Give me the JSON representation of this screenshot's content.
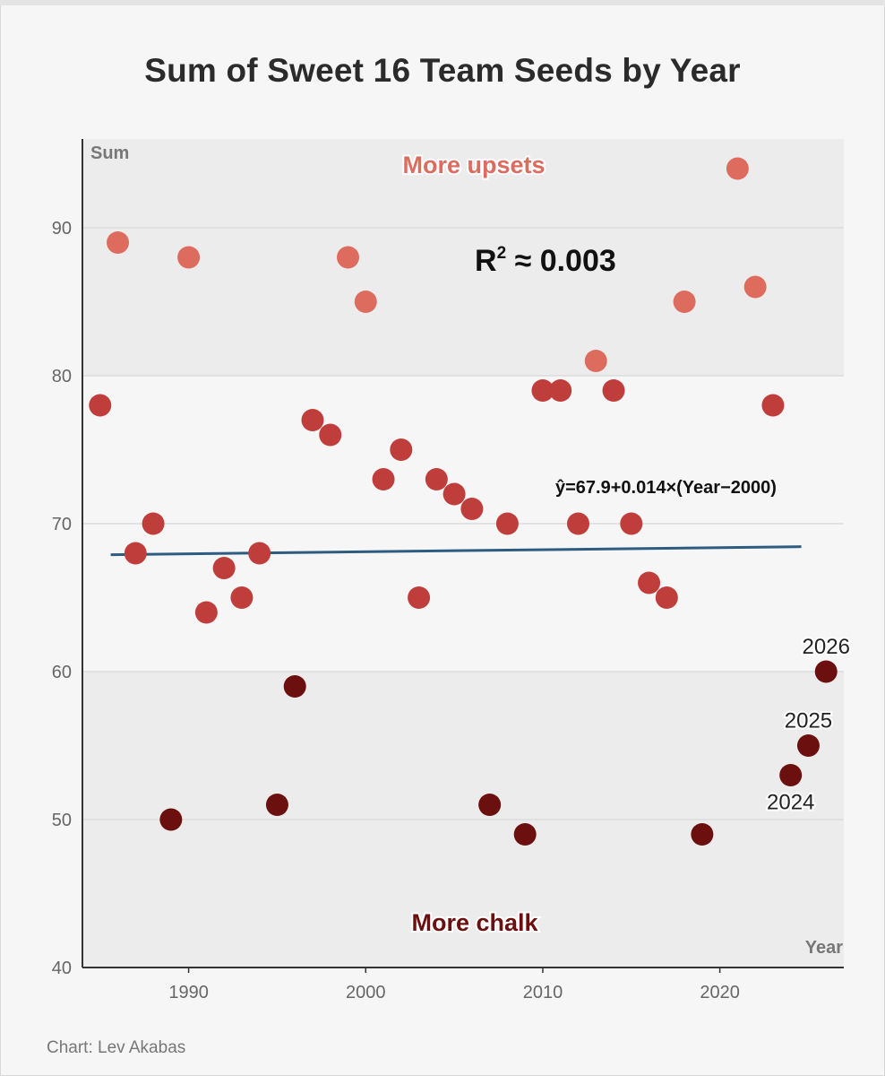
{
  "title": "Sum of Sweet 16 Team Seeds by Year",
  "source": "Chart: Lev Akabas",
  "colors": {
    "upset": "#de6c5e",
    "middle": "#bf3e3c",
    "chalk": "#6b0f0f",
    "trend": "#2e5c80",
    "band": "#ececec",
    "axis": "#333333"
  },
  "chart_data": {
    "type": "scatter",
    "title": "Sum of Sweet 16 Team Seeds by Year",
    "xlabel": "Year",
    "ylabel": "Sum",
    "xlim": [
      1984,
      2027
    ],
    "ylim": [
      40,
      96
    ],
    "xticks": [
      1990,
      2000,
      2010,
      2020
    ],
    "yticks": [
      40,
      50,
      60,
      70,
      80,
      90
    ],
    "bands": [
      [
        40,
        60
      ],
      [
        80,
        96
      ]
    ],
    "annotations": {
      "top": "More upsets",
      "bottom": "More chalk",
      "r2_prefix": "R",
      "r2_exp": "2",
      "r2_value": " ≈ 0.003",
      "equation": "ŷ=67.9+0.014×(Year−2000)"
    },
    "trendline": {
      "intercept": 67.9,
      "slope": 0.014,
      "x_start": 1985.6,
      "x_end": 2024.6
    },
    "points": [
      {
        "year": 1985,
        "sum": 78,
        "group": "middle"
      },
      {
        "year": 1986,
        "sum": 89,
        "group": "upset"
      },
      {
        "year": 1987,
        "sum": 68,
        "group": "middle"
      },
      {
        "year": 1988,
        "sum": 70,
        "group": "middle"
      },
      {
        "year": 1989,
        "sum": 50,
        "group": "chalk"
      },
      {
        "year": 1990,
        "sum": 88,
        "group": "upset"
      },
      {
        "year": 1991,
        "sum": 64,
        "group": "middle"
      },
      {
        "year": 1992,
        "sum": 67,
        "group": "middle"
      },
      {
        "year": 1993,
        "sum": 65,
        "group": "middle"
      },
      {
        "year": 1994,
        "sum": 68,
        "group": "middle"
      },
      {
        "year": 1995,
        "sum": 51,
        "group": "chalk"
      },
      {
        "year": 1996,
        "sum": 59,
        "group": "chalk"
      },
      {
        "year": 1997,
        "sum": 77,
        "group": "middle"
      },
      {
        "year": 1998,
        "sum": 76,
        "group": "middle"
      },
      {
        "year": 1999,
        "sum": 88,
        "group": "upset"
      },
      {
        "year": 2000,
        "sum": 85,
        "group": "upset"
      },
      {
        "year": 2001,
        "sum": 73,
        "group": "middle"
      },
      {
        "year": 2002,
        "sum": 75,
        "group": "middle"
      },
      {
        "year": 2003,
        "sum": 65,
        "group": "middle"
      },
      {
        "year": 2004,
        "sum": 73,
        "group": "middle"
      },
      {
        "year": 2005,
        "sum": 72,
        "group": "middle"
      },
      {
        "year": 2006,
        "sum": 71,
        "group": "middle"
      },
      {
        "year": 2007,
        "sum": 51,
        "group": "chalk"
      },
      {
        "year": 2008,
        "sum": 70,
        "group": "middle"
      },
      {
        "year": 2009,
        "sum": 49,
        "group": "chalk"
      },
      {
        "year": 2010,
        "sum": 79,
        "group": "middle"
      },
      {
        "year": 2011,
        "sum": 79,
        "group": "middle"
      },
      {
        "year": 2012,
        "sum": 70,
        "group": "middle"
      },
      {
        "year": 2013,
        "sum": 81,
        "group": "upset"
      },
      {
        "year": 2014,
        "sum": 79,
        "group": "middle"
      },
      {
        "year": 2015,
        "sum": 70,
        "group": "middle"
      },
      {
        "year": 2016,
        "sum": 66,
        "group": "middle"
      },
      {
        "year": 2017,
        "sum": 65,
        "group": "middle"
      },
      {
        "year": 2018,
        "sum": 85,
        "group": "upset"
      },
      {
        "year": 2019,
        "sum": 49,
        "group": "chalk"
      },
      {
        "year": 2021,
        "sum": 94,
        "group": "upset"
      },
      {
        "year": 2022,
        "sum": 86,
        "group": "upset"
      },
      {
        "year": 2023,
        "sum": 78,
        "group": "middle"
      },
      {
        "year": 2024,
        "sum": 53,
        "group": "chalk",
        "label": "2024",
        "label_pos": "below"
      },
      {
        "year": 2025,
        "sum": 55,
        "group": "chalk",
        "label": "2025",
        "label_pos": "above"
      },
      {
        "year": 2026,
        "sum": 60,
        "group": "chalk",
        "label": "2026",
        "label_pos": "above"
      }
    ]
  }
}
